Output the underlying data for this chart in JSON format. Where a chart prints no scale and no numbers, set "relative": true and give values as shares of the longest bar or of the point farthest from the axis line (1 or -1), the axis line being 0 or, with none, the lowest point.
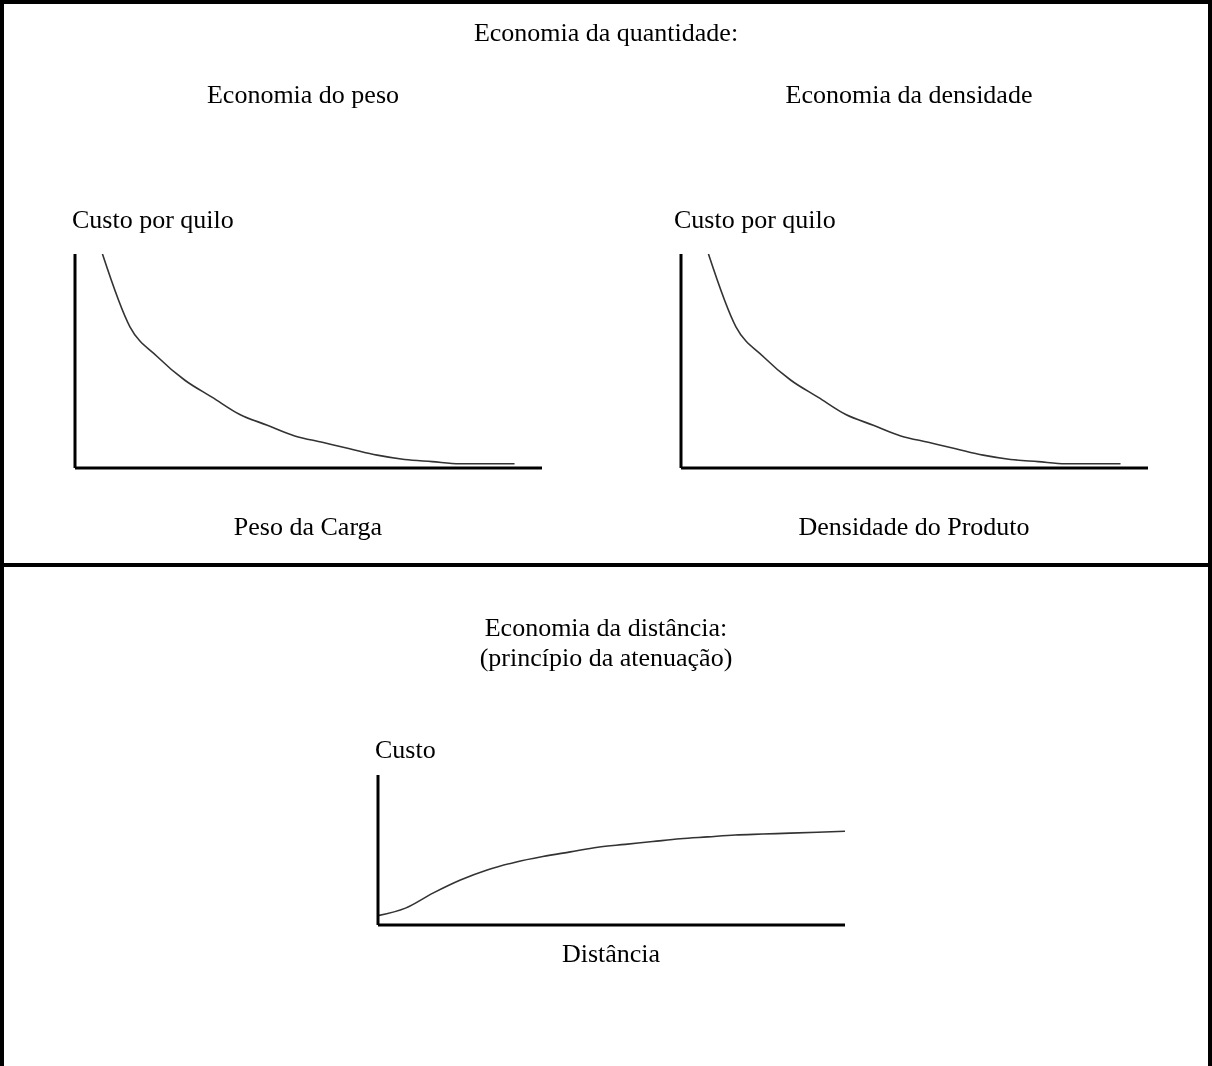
{
  "chart_data": [
    {
      "type": "line",
      "title": "Economia da quantidade:",
      "subtitle": "Economia do peso",
      "ylabel": "Custo por quilo",
      "xlabel": "Peso da Carga",
      "relative": true,
      "categories": [
        null,
        null,
        null,
        null,
        null,
        null,
        null,
        null,
        null,
        null,
        null,
        null,
        null,
        null,
        null,
        null,
        null,
        null
      ],
      "series": [
        {
          "color": "#333333",
          "values": [
            null,
            1,
            0.66,
            0.52,
            0.41,
            0.33,
            0.25,
            0.2,
            0.15,
            0.12,
            0.09,
            0.06,
            0.04,
            0.03,
            0.02,
            0.02,
            0.02,
            null
          ]
        }
      ]
    },
    {
      "type": "line",
      "subtitle": "Economia da densidade",
      "ylabel": "Custo por quilo",
      "xlabel": "Densidade do Produto",
      "relative": true,
      "categories": [
        null,
        null,
        null,
        null,
        null,
        null,
        null,
        null,
        null,
        null,
        null,
        null,
        null,
        null,
        null,
        null,
        null,
        null
      ],
      "series": [
        {
          "color": "#333333",
          "values": [
            null,
            1,
            0.66,
            0.52,
            0.41,
            0.33,
            0.25,
            0.2,
            0.15,
            0.12,
            0.09,
            0.06,
            0.04,
            0.03,
            0.02,
            0.02,
            0.02,
            null
          ]
        }
      ]
    },
    {
      "type": "line",
      "title": "Economia da distância:",
      "subtitle": "(princípio da atenuação)",
      "ylabel": "Custo",
      "xlabel": "Distância",
      "relative": true,
      "categories": [
        null,
        null,
        null,
        null,
        null,
        null,
        null,
        null,
        null,
        null,
        null,
        null,
        null,
        null,
        null,
        null,
        null,
        null
      ],
      "series": [
        {
          "color": "#333333",
          "values": [
            0.1,
            0.18,
            0.34,
            0.48,
            0.59,
            0.67,
            0.73,
            0.78,
            0.83,
            0.86,
            0.89,
            0.92,
            0.94,
            0.96,
            0.97,
            0.98,
            0.99,
            1
          ]
        }
      ]
    }
  ]
}
